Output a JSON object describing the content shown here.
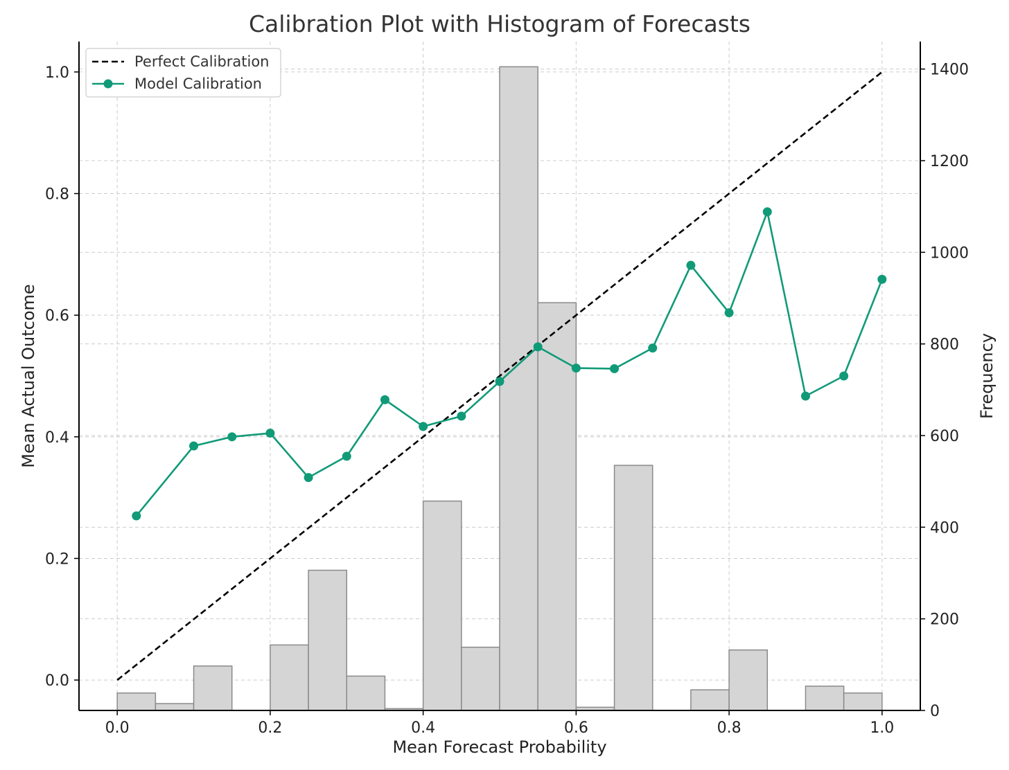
{
  "chart_data": {
    "type": "line",
    "title": "Calibration Plot with Histogram of Forecasts",
    "xlabel": "Mean Forecast Probability",
    "ylabel": "Mean Actual Outcome",
    "y2label": "Frequency",
    "xlim": [
      -0.05,
      1.05
    ],
    "ylim": [
      -0.05,
      1.05
    ],
    "y2lim": [
      0,
      1460
    ],
    "x_ticks": [
      "0.0",
      "0.2",
      "0.4",
      "0.6",
      "0.8",
      "1.0"
    ],
    "x_tick_values": [
      0.0,
      0.2,
      0.4,
      0.6,
      0.8,
      1.0
    ],
    "y_ticks": [
      "0.0",
      "0.2",
      "0.4",
      "0.6",
      "0.8",
      "1.0"
    ],
    "y_tick_values": [
      0.0,
      0.2,
      0.4,
      0.6,
      0.8,
      1.0
    ],
    "y2_ticks": [
      "0",
      "200",
      "400",
      "600",
      "800",
      "1000",
      "1200",
      "1400"
    ],
    "y2_tick_values": [
      0,
      200,
      400,
      600,
      800,
      1000,
      1200,
      1400
    ],
    "grid": true,
    "legend": {
      "position": "top-left",
      "entries": [
        "Perfect Calibration",
        "Model Calibration"
      ]
    },
    "series": [
      {
        "name": "Perfect Calibration",
        "style": "dashed",
        "color": "#000000",
        "x": [
          0.0,
          1.0
        ],
        "y": [
          0.0,
          1.0
        ]
      },
      {
        "name": "Model Calibration",
        "style": "solid-markers",
        "color": "#119a78",
        "x": [
          0.025,
          0.1,
          0.15,
          0.2,
          0.25,
          0.3,
          0.35,
          0.4,
          0.45,
          0.5,
          0.55,
          0.6,
          0.65,
          0.7,
          0.75,
          0.8,
          0.85,
          0.9,
          0.95,
          1.0
        ],
        "y": [
          0.27,
          0.385,
          0.4,
          0.406,
          0.333,
          0.368,
          0.461,
          0.417,
          0.434,
          0.491,
          0.548,
          0.513,
          0.512,
          0.546,
          0.682,
          0.604,
          0.77,
          0.467,
          0.5,
          0.659
        ]
      }
    ],
    "histogram": {
      "name": "Frequency",
      "color": "#d5d5d5",
      "bin_edges": [
        0.0,
        0.05,
        0.1,
        0.15,
        0.2,
        0.25,
        0.3,
        0.35,
        0.4,
        0.45,
        0.5,
        0.55,
        0.6,
        0.65,
        0.7,
        0.75,
        0.8,
        0.85,
        0.9,
        0.95,
        1.0
      ],
      "counts": [
        38,
        15,
        97,
        0,
        143,
        306,
        75,
        4,
        457,
        138,
        1405,
        890,
        7,
        535,
        0,
        45,
        132,
        0,
        53,
        38
      ]
    }
  }
}
